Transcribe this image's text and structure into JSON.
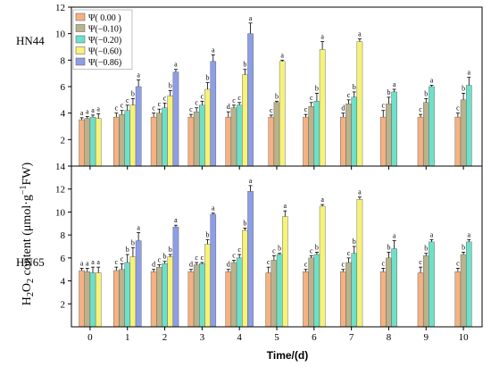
{
  "chart_data": {
    "type": "bar",
    "xlabel": "Time/(d)",
    "ylabel": "H2O2 content (μmol·g−1FW)",
    "categories": [
      "0",
      "1",
      "2",
      "3",
      "4",
      "5",
      "6",
      "7",
      "8",
      "9",
      "10"
    ],
    "legend": {
      "placement": "top-left",
      "entries": [
        "Ψ( 0.00 )",
        "Ψ(−0.10)",
        "Ψ(−0.20)",
        "Ψ(−0.60)",
        "Ψ(−0.86)"
      ]
    },
    "colors": [
      "#f4b183",
      "#b9b38d",
      "#6fe0c8",
      "#f6f27a",
      "#8d9ee6"
    ],
    "panels": [
      {
        "name": "HN44",
        "ylim": [
          0,
          12
        ],
        "yticks": [
          2,
          4,
          6,
          8,
          10,
          12
        ],
        "series": [
          {
            "values": [
              3.5,
              3.7,
              3.7,
              3.7,
              3.7,
              3.7,
              3.7,
              3.7,
              3.7,
              3.7,
              3.7
            ],
            "errors": [
              0.15,
              0.3,
              0.3,
              0.2,
              0.4,
              0.15,
              0.2,
              0.3,
              0.5,
              0.2,
              0.3
            ],
            "letters": [
              "a",
              "c",
              "c",
              "c",
              "d",
              "c",
              "c",
              "d",
              "c",
              "c",
              "c"
            ]
          },
          {
            "values": [
              3.6,
              3.9,
              4.0,
              4.1,
              4.4,
              4.8,
              4.5,
              4.7,
              4.7,
              4.8,
              5.0
            ],
            "errors": [
              0.15,
              0.3,
              0.3,
              0.3,
              0.2,
              0.1,
              0.3,
              0.3,
              0.5,
              0.3,
              0.5
            ],
            "letters": [
              "a",
              "c",
              "c",
              "c",
              "c",
              "b",
              "c",
              "c",
              "b",
              "b",
              "b"
            ]
          },
          {
            "values": [
              3.7,
              4.2,
              4.4,
              4.6,
              4.6,
              null,
              4.9,
              5.2,
              5.6,
              6.0,
              6.1
            ],
            "errors": [
              0.15,
              0.4,
              0.35,
              0.3,
              0.2,
              null,
              0.6,
              0.4,
              0.2,
              0.1,
              0.6
            ],
            "letters": [
              "a",
              "c",
              "c",
              "c",
              "c",
              "",
              "b",
              "b",
              "a",
              "a",
              "a"
            ]
          },
          {
            "values": [
              3.6,
              4.6,
              5.3,
              5.8,
              6.9,
              7.9,
              8.8,
              9.4,
              null,
              null,
              null
            ],
            "errors": [
              0.35,
              0.5,
              0.4,
              0.5,
              0.4,
              0.1,
              0.6,
              0.2,
              null,
              null,
              null
            ],
            "letters": [
              "a",
              "b",
              "b",
              "b",
              "b",
              "a",
              "a",
              "a",
              "",
              "",
              ""
            ]
          },
          {
            "values": [
              null,
              6.0,
              7.1,
              7.9,
              10.0,
              null,
              null,
              null,
              null,
              null,
              null
            ],
            "errors": [
              null,
              0.5,
              0.2,
              0.5,
              0.8,
              null,
              null,
              null,
              null,
              null,
              null
            ],
            "letters": [
              "",
              "a",
              "a",
              "a",
              "a",
              "",
              "",
              "",
              "",
              "",
              ""
            ]
          }
        ]
      },
      {
        "name": "HN65",
        "ylim": [
          0,
          14
        ],
        "yticks": [
          2,
          4,
          6,
          8,
          10,
          12,
          14
        ],
        "series": [
          {
            "values": [
              4.9,
              4.9,
              4.8,
              4.8,
              4.8,
              4.7,
              4.8,
              4.8,
              4.8,
              4.7,
              4.8
            ],
            "errors": [
              0.2,
              0.3,
              0.2,
              0.2,
              0.2,
              0.5,
              0.2,
              0.2,
              0.3,
              0.5,
              0.3
            ],
            "letters": [
              "a",
              "c",
              "d",
              "d",
              "d",
              "c",
              "c",
              "c",
              "c",
              "c",
              "c"
            ]
          },
          {
            "values": [
              4.8,
              5.0,
              5.2,
              5.4,
              5.6,
              5.8,
              6.0,
              5.6,
              6.0,
              6.2,
              6.3
            ],
            "errors": [
              0.3,
              0.5,
              0.2,
              0.2,
              0.2,
              0.4,
              0.2,
              0.4,
              0.5,
              0.2,
              0.2
            ],
            "letters": [
              "a",
              "c",
              "c",
              "c",
              "c",
              "c",
              "c",
              "c",
              "b",
              "b",
              "b"
            ]
          },
          {
            "values": [
              4.7,
              5.6,
              5.5,
              5.5,
              6.0,
              6.3,
              6.3,
              6.4,
              6.8,
              7.4,
              7.4
            ],
            "errors": [
              0.5,
              0.7,
              0.2,
              0.1,
              0.3,
              0.1,
              0.2,
              0.6,
              0.7,
              0.2,
              0.2
            ],
            "letters": [
              "a",
              "b",
              "b",
              "c",
              "c",
              "b",
              "b",
              "b",
              "a",
              "a",
              "a"
            ]
          },
          {
            "values": [
              4.7,
              6.1,
              6.1,
              7.2,
              8.4,
              9.6,
              10.5,
              11.1,
              null,
              null,
              null
            ],
            "errors": [
              0.5,
              0.8,
              0.2,
              0.4,
              0.2,
              0.5,
              0.15,
              0.2,
              null,
              null,
              null
            ],
            "letters": [
              "a",
              "b",
              "b",
              "b",
              "b",
              "a",
              "a",
              "a",
              "",
              "",
              ""
            ]
          },
          {
            "values": [
              null,
              7.5,
              8.7,
              9.8,
              11.8,
              null,
              null,
              null,
              null,
              null,
              null
            ],
            "errors": [
              null,
              0.7,
              0.15,
              0.1,
              0.5,
              null,
              null,
              null,
              null,
              null,
              null
            ],
            "letters": [
              "",
              "a",
              "a",
              "a",
              "a",
              "",
              "",
              "",
              "",
              "",
              ""
            ]
          }
        ]
      }
    ]
  }
}
